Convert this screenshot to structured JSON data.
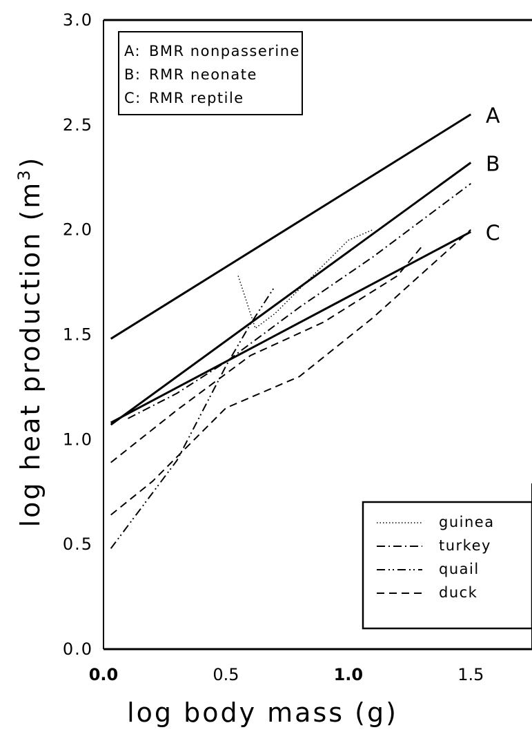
{
  "chart_data": {
    "type": "line",
    "xlabel": "log body mass (g)",
    "ylabel": "log heat production (m³)",
    "ylabel_main": "log heat production (m",
    "ylabel_sup": "3",
    "ylabel_close": ")",
    "xlim": [
      0.0,
      1.75
    ],
    "ylim": [
      0.0,
      3.0
    ],
    "x_ticks": [
      {
        "value": 0.0,
        "label": "0.0"
      },
      {
        "value": 0.5,
        "label": "0.5"
      },
      {
        "value": 1.0,
        "label": "1.0"
      },
      {
        "value": 1.5,
        "label": "1.5"
      }
    ],
    "y_ticks": [
      {
        "value": 0.0,
        "label": "0.0"
      },
      {
        "value": 0.5,
        "label": "0.5"
      },
      {
        "value": 1.0,
        "label": "1.0"
      },
      {
        "value": 1.5,
        "label": "1.5"
      },
      {
        "value": 2.0,
        "label": "2.0"
      },
      {
        "value": 2.5,
        "label": "2.5"
      },
      {
        "value": 3.0,
        "label": "3.0"
      }
    ],
    "reference_lines": [
      {
        "name": "A",
        "description": "BMR nonpasserine",
        "x": [
          0.03,
          1.5
        ],
        "y": [
          1.48,
          2.55
        ]
      },
      {
        "name": "B",
        "description": "RMR neonate",
        "x": [
          0.03,
          1.5
        ],
        "y": [
          1.07,
          2.32
        ]
      },
      {
        "name": "C",
        "description": "RMR reptile",
        "x": [
          0.03,
          1.5
        ],
        "y": [
          1.08,
          1.99
        ]
      }
    ],
    "top_legend": [
      {
        "key": "A:",
        "text": "BMR nonpasserine"
      },
      {
        "key": "B:",
        "text": "RMR neonate"
      },
      {
        "key": "C:",
        "text": "RMR reptile"
      }
    ],
    "series": [
      {
        "name": "guinea",
        "style": "dotted",
        "x": [
          0.55,
          0.62,
          0.7,
          1.0,
          1.1
        ],
        "y": [
          1.78,
          1.53,
          1.6,
          1.95,
          2.0
        ]
      },
      {
        "name": "turkey",
        "style": "dash-dot",
        "x": [
          0.1,
          0.3,
          0.5,
          0.8,
          1.1,
          1.5
        ],
        "y": [
          1.1,
          1.22,
          1.37,
          1.63,
          1.87,
          2.22
        ]
      },
      {
        "name": "quail",
        "style": "dash-dot-dot",
        "x": [
          0.03,
          0.3,
          0.5,
          0.6,
          0.7
        ],
        "y": [
          0.48,
          0.9,
          1.35,
          1.55,
          1.73
        ]
      },
      {
        "name": "duck",
        "style": "dashed",
        "x": [
          0.03,
          0.2,
          0.5,
          0.8,
          1.1,
          1.5
        ],
        "y": [
          0.64,
          0.8,
          1.15,
          1.3,
          1.58,
          2.0
        ]
      },
      {
        "name": "",
        "style": "dashed",
        "x": [
          0.03,
          0.3,
          0.6,
          0.9,
          1.2,
          1.3
        ],
        "y": [
          0.89,
          1.14,
          1.4,
          1.56,
          1.78,
          1.92
        ]
      }
    ],
    "legend": {
      "placement": "bottom-right",
      "entries": [
        {
          "label": "guinea",
          "style": "dotted"
        },
        {
          "label": "turkey",
          "style": "dash-dot"
        },
        {
          "label": "quail",
          "style": "dash-dot-dot"
        },
        {
          "label": "duck",
          "style": "dashed"
        }
      ]
    },
    "grid": false,
    "colors": {
      "line": "#000000",
      "background": "#ffffff"
    }
  }
}
